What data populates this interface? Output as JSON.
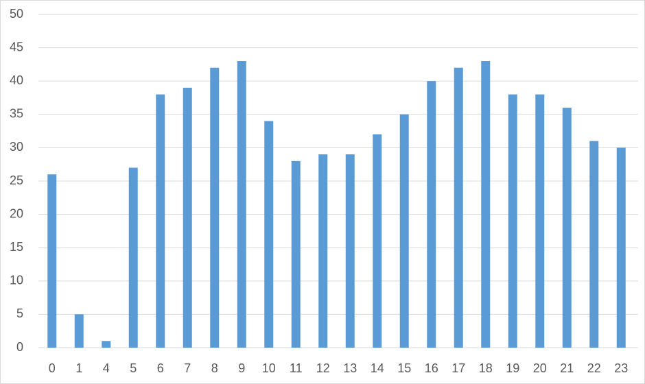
{
  "chart_data": {
    "type": "bar",
    "categories": [
      "0",
      "1",
      "4",
      "5",
      "6",
      "7",
      "8",
      "9",
      "10",
      "11",
      "12",
      "13",
      "14",
      "15",
      "16",
      "17",
      "18",
      "19",
      "20",
      "21",
      "22",
      "23"
    ],
    "values": [
      26,
      5,
      1,
      27,
      38,
      39,
      42,
      43,
      34,
      28,
      29,
      29,
      32,
      35,
      40,
      42,
      43,
      38,
      38,
      36,
      31,
      30
    ],
    "color": "#5b9bd5",
    "ylim": [
      0,
      50
    ],
    "yticks": [
      0,
      5,
      10,
      15,
      20,
      25,
      30,
      35,
      40,
      45,
      50
    ],
    "grid": true
  }
}
